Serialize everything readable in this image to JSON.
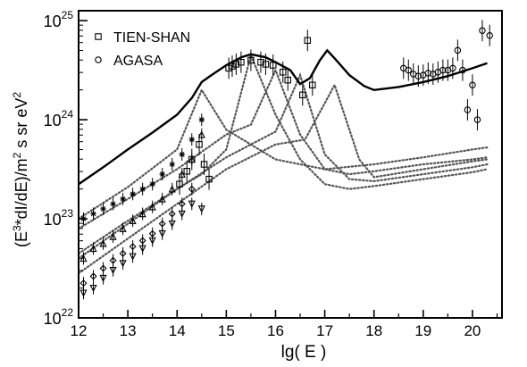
{
  "chart_data": {
    "type": "scatter",
    "title": "",
    "xlabel": "lg( E )",
    "ylabel": "(E^3*dI/dE)/m^2 s sr eV^2",
    "xlim": [
      12,
      20.6
    ],
    "ylim_log10": [
      22,
      25.1
    ],
    "y_scale": "log",
    "x_ticks": [
      "12",
      "13",
      "14",
      "15",
      "16",
      "17",
      "18",
      "19",
      "20"
    ],
    "y_ticks": [
      {
        "base": "10",
        "exp": "22",
        "value": 22
      },
      {
        "base": "10",
        "exp": "23",
        "value": 23
      },
      {
        "base": "10",
        "exp": "24",
        "value": 24
      },
      {
        "base": "10",
        "exp": "25",
        "value": 25
      }
    ],
    "legend_position": "top-left",
    "legend": [
      {
        "symbol": "square",
        "label": "TIEN-SHAN"
      },
      {
        "symbol": "circle",
        "label": "AGASA"
      }
    ],
    "total_curve": {
      "x": [
        12.0,
        12.5,
        13.0,
        13.5,
        14.0,
        14.3,
        14.5,
        14.7,
        15.0,
        15.3,
        15.5,
        15.8,
        16.0,
        16.3,
        16.5,
        16.7,
        16.9,
        17.05,
        17.2,
        17.5,
        17.8,
        18.0,
        18.5,
        19.0,
        19.5,
        20.0,
        20.3
      ],
      "y_log10": [
        23.35,
        23.52,
        23.7,
        23.87,
        24.05,
        24.22,
        24.38,
        24.45,
        24.55,
        24.63,
        24.66,
        24.63,
        24.58,
        24.5,
        24.36,
        24.42,
        24.6,
        24.7,
        24.62,
        24.45,
        24.34,
        24.3,
        24.33,
        24.38,
        24.44,
        24.52,
        24.57
      ]
    },
    "component_curves": [
      {
        "x": [
          12.0,
          13.0,
          14.0,
          14.5,
          15.0,
          15.5,
          16.0,
          16.5,
          17.0,
          17.5,
          18.0,
          19.0,
          20.0,
          20.3
        ],
        "y_log10": [
          22.6,
          22.95,
          23.3,
          23.45,
          23.7,
          24.65,
          24.05,
          23.6,
          23.35,
          23.3,
          23.33,
          23.4,
          23.47,
          23.5
        ]
      },
      {
        "x": [
          12.0,
          13.0,
          14.0,
          15.0,
          15.5,
          16.0,
          16.5,
          17.0,
          17.5,
          18.0,
          19.0,
          20.0,
          20.3
        ],
        "y_log10": [
          22.9,
          23.2,
          23.5,
          23.85,
          23.95,
          24.5,
          23.85,
          23.5,
          23.45,
          23.48,
          23.55,
          23.6,
          23.62
        ]
      },
      {
        "x": [
          12.0,
          13.0,
          14.0,
          15.0,
          16.0,
          16.5,
          17.0,
          17.5,
          18.0,
          19.0,
          20.0,
          20.3
        ],
        "y_log10": [
          22.65,
          22.98,
          23.3,
          23.62,
          23.88,
          24.45,
          23.65,
          23.4,
          23.38,
          23.45,
          23.52,
          23.55
        ]
      },
      {
        "x": [
          12.0,
          13.0,
          14.0,
          15.0,
          16.0,
          16.6,
          17.2,
          17.7,
          18.0,
          19.0,
          20.0,
          20.3
        ],
        "y_log10": [
          22.45,
          22.8,
          23.15,
          23.5,
          23.75,
          23.8,
          24.35,
          23.6,
          23.42,
          23.5,
          23.58,
          23.6
        ]
      },
      {
        "x": [
          12.0,
          13.0,
          14.0,
          14.5,
          15.0,
          16.0,
          17.0,
          18.0,
          19.0,
          20.0,
          20.3
        ],
        "y_log10": [
          23.0,
          23.32,
          23.7,
          24.3,
          23.9,
          23.6,
          23.5,
          23.55,
          23.62,
          23.7,
          23.72
        ]
      }
    ],
    "series": [
      {
        "name": "TIEN-SHAN",
        "marker": "square",
        "x": [
          14.05,
          14.2,
          14.3,
          14.45,
          14.55,
          14.65,
          15.05,
          15.12,
          15.2,
          15.3,
          15.5,
          15.7,
          15.8,
          15.95,
          16.15,
          16.25,
          16.55,
          16.65,
          16.75
        ],
        "y_log10": [
          23.35,
          23.48,
          23.6,
          23.75,
          23.55,
          23.4,
          24.52,
          24.54,
          24.56,
          24.58,
          24.6,
          24.58,
          24.56,
          24.55,
          24.48,
          24.4,
          24.25,
          24.8,
          24.35
        ]
      },
      {
        "name": "AGASA",
        "marker": "circle",
        "x": [
          18.6,
          18.7,
          18.8,
          18.9,
          19.0,
          19.1,
          19.2,
          19.3,
          19.4,
          19.5,
          19.6,
          19.7,
          19.8,
          19.9,
          20.0,
          20.1,
          20.2,
          20.35
        ],
        "y_log10": [
          24.52,
          24.5,
          24.46,
          24.44,
          24.45,
          24.47,
          24.46,
          24.48,
          24.5,
          24.5,
          24.52,
          24.7,
          24.5,
          24.1,
          24.35,
          24.0,
          24.9,
          24.85
        ]
      },
      {
        "marker": "star",
        "x": [
          12.1,
          12.3,
          12.5,
          12.7,
          12.9,
          13.1,
          13.3,
          13.5,
          13.7,
          13.9,
          14.1,
          14.3,
          14.5
        ],
        "y_log10": [
          23.0,
          23.05,
          23.1,
          23.15,
          23.2,
          23.25,
          23.3,
          23.35,
          23.45,
          23.55,
          23.65,
          23.8,
          24.0
        ]
      },
      {
        "marker": "triangle",
        "x": [
          12.1,
          12.3,
          12.5,
          12.7,
          12.9,
          13.1,
          13.3,
          13.5,
          13.7,
          13.9,
          14.1,
          14.3,
          14.5
        ],
        "y_log10": [
          22.6,
          22.7,
          22.75,
          22.82,
          22.9,
          22.98,
          23.05,
          23.12,
          23.2,
          23.3,
          23.45,
          23.6,
          23.85
        ]
      },
      {
        "marker": "diamond",
        "x": [
          12.1,
          12.3,
          12.5,
          12.7,
          12.9,
          13.1,
          13.3,
          13.5,
          13.7,
          13.9,
          14.1,
          14.3
        ],
        "y_log10": [
          22.35,
          22.42,
          22.5,
          22.58,
          22.65,
          22.72,
          22.78,
          22.85,
          22.95,
          23.05,
          23.15,
          23.3
        ]
      },
      {
        "marker": "down-triangle",
        "x": [
          12.1,
          12.3,
          12.5,
          12.7,
          12.9,
          13.1,
          13.3,
          13.5,
          13.7,
          13.9,
          14.1,
          14.3,
          14.5
        ],
        "y_log10": [
          22.25,
          22.3,
          22.4,
          22.48,
          22.55,
          22.62,
          22.7,
          22.78,
          22.85,
          22.95,
          23.05,
          23.15,
          23.1
        ]
      }
    ]
  }
}
